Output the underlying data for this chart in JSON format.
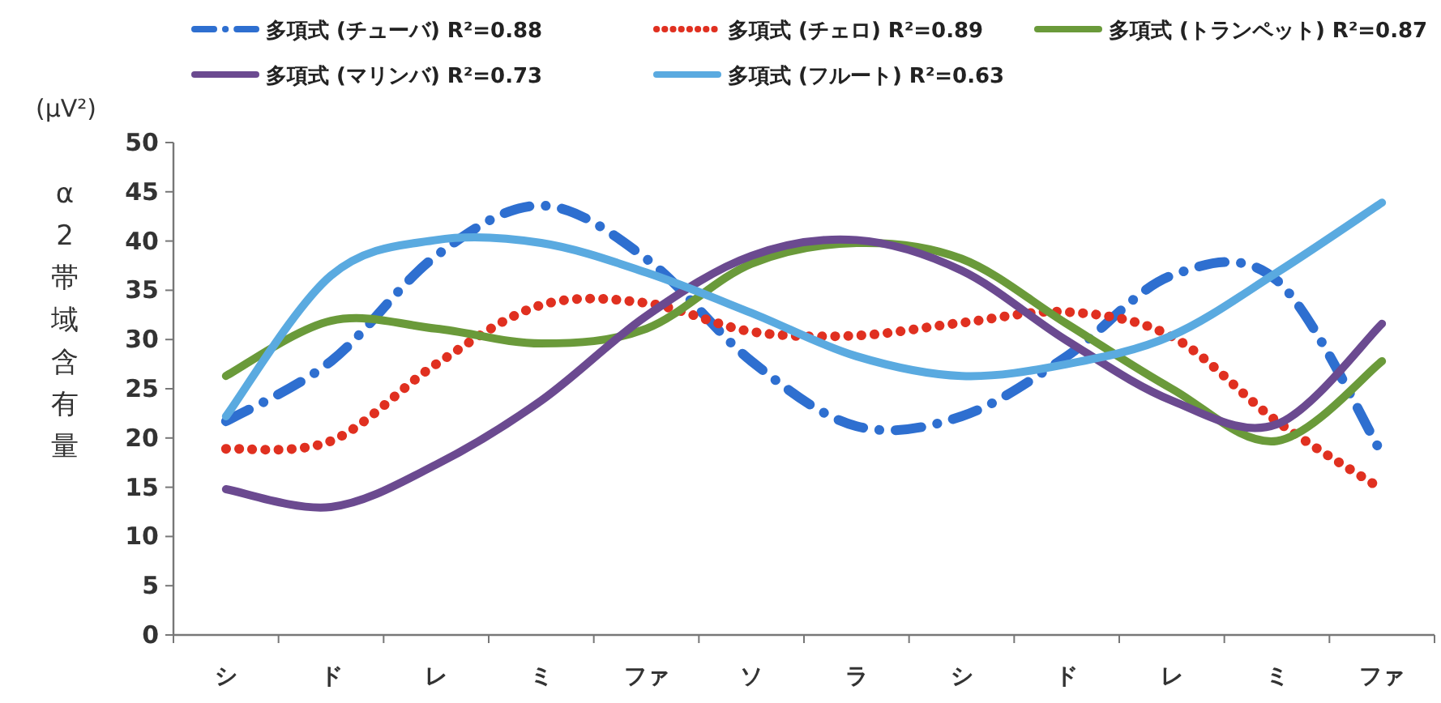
{
  "chart_data": {
    "type": "line",
    "ylabel": "α2帯域含有量",
    "annotations": [
      "(μV²)"
    ],
    "categories": [
      "シ",
      "ド",
      "レ",
      "ミ",
      "ファ",
      "ソ",
      "ラ",
      "シ",
      "ド",
      "レ",
      "ミ",
      "ファ"
    ],
    "ylim": [
      0,
      50
    ],
    "yticks": [
      0,
      5,
      10,
      15,
      20,
      25,
      30,
      35,
      40,
      45,
      50
    ],
    "grid": false,
    "legend": "top",
    "marker": "none",
    "series": [
      {
        "name": "多項式 (チューバ) R²=0.88",
        "color": "#2e6fd0",
        "line_style": "dashdot",
        "values": [
          21.7,
          27.8,
          38.5,
          43.6,
          38.2,
          27.8,
          21.2,
          22.2,
          28.3,
          36.5,
          36,
          18.4
        ]
      },
      {
        "name": "多項式 (チェロ) R²=0.89",
        "color": "#e03020",
        "line_style": "dotted",
        "values": [
          18.9,
          19.7,
          27.5,
          33.5,
          33.7,
          30.8,
          30.4,
          31.7,
          32.8,
          30.3,
          21.7,
          14.8
        ]
      },
      {
        "name": "多項式 (トランペット) R²=0.87",
        "color": "#6a9a3a",
        "line_style": "solid",
        "values": [
          26.3,
          31.9,
          31.1,
          29.6,
          31.1,
          37.7,
          39.8,
          38.2,
          31.6,
          25,
          19.7,
          27.8
        ]
      },
      {
        "name": "多項式 (マリンバ) R²=0.73",
        "color": "#6b4a90",
        "line_style": "solid",
        "values": [
          14.8,
          13,
          17.3,
          23.8,
          32.4,
          38.5,
          40.1,
          37,
          29.9,
          23.8,
          21.4,
          31.6
        ]
      },
      {
        "name": "多項式 (フルート) R²=0.63",
        "color": "#5aaae0",
        "line_style": "solid",
        "values": [
          22.2,
          36.5,
          40.1,
          39.8,
          36.8,
          32.7,
          28.3,
          26.3,
          27.5,
          30.4,
          36.8,
          43.9
        ]
      }
    ]
  }
}
